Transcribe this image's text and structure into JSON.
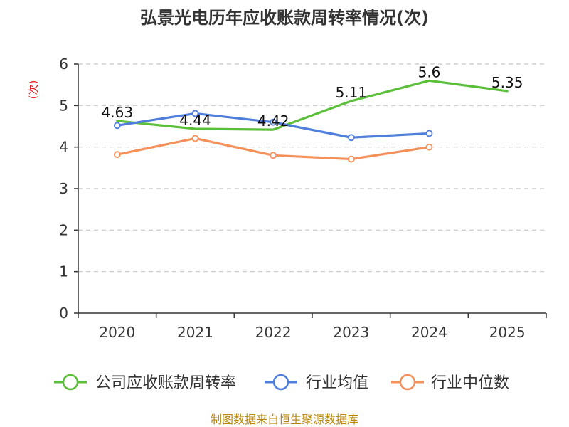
{
  "chart_data": {
    "type": "line",
    "title": "弘景光电历年应收账款周转率情况(次)",
    "ylabel": "(次)",
    "xlabel": "",
    "categories": [
      "2020",
      "2021",
      "2022",
      "2023",
      "2024",
      "2025"
    ],
    "y_ticks": [
      "0",
      "1",
      "2",
      "3",
      "4",
      "5",
      "6"
    ],
    "ylim": [
      0,
      6
    ],
    "grid": true,
    "legend_position": "bottom",
    "series": [
      {
        "name": "公司应收账款周转率",
        "color": "#5cbf3a",
        "values": [
          4.63,
          4.44,
          4.42,
          5.11,
          5.6,
          5.35
        ],
        "labels": [
          "4.63",
          "4.44",
          "4.42",
          "5.11",
          "5.6",
          "5.35"
        ],
        "show_markers": false
      },
      {
        "name": "行业均值",
        "color": "#4f7fdb",
        "values": [
          4.52,
          4.81,
          4.6,
          4.23,
          4.33,
          null
        ],
        "show_markers": true
      },
      {
        "name": "行业中位数",
        "color": "#f4915b",
        "values": [
          3.82,
          4.21,
          3.8,
          3.71,
          4.0,
          null
        ],
        "show_markers": true
      }
    ],
    "source": "制图数据来自恒生聚源数据库"
  }
}
